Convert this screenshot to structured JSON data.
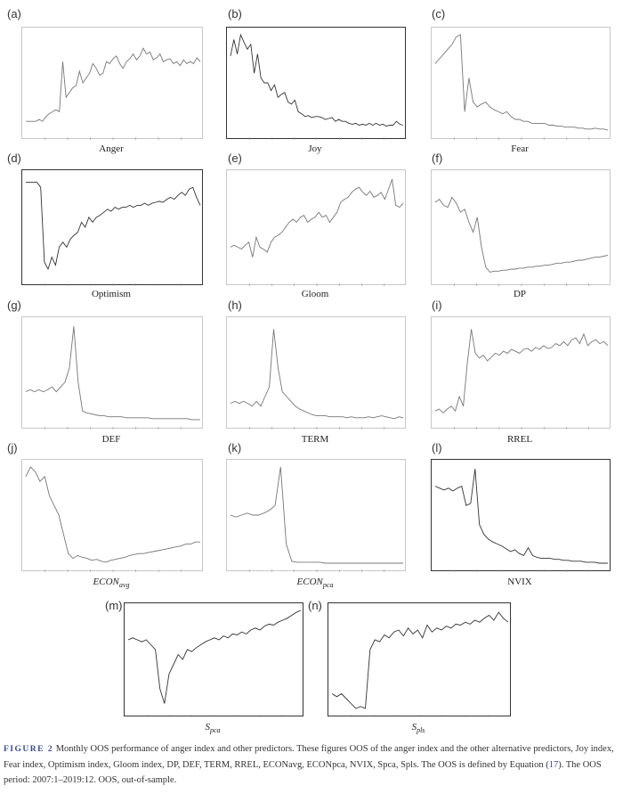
{
  "panels": [
    {
      "id": "a",
      "letter": "(a)",
      "label": "Anger",
      "label_italic": false,
      "label_sub": "",
      "frame": "light",
      "series": [
        0.1,
        0.1,
        0.1,
        0.1,
        0.12,
        0.1,
        0.15,
        0.18,
        0.2,
        0.22,
        0.2,
        0.72,
        0.35,
        0.4,
        0.45,
        0.47,
        0.62,
        0.5,
        0.55,
        0.6,
        0.7,
        0.65,
        0.58,
        0.6,
        0.72,
        0.7,
        0.75,
        0.78,
        0.7,
        0.65,
        0.72,
        0.75,
        0.8,
        0.74,
        0.78,
        0.86,
        0.8,
        0.82,
        0.74,
        0.76,
        0.8,
        0.72,
        0.74,
        0.75,
        0.7,
        0.72,
        0.68,
        0.74,
        0.7,
        0.72,
        0.7,
        0.76,
        0.72
      ]
    },
    {
      "id": "b",
      "letter": "(b)",
      "label": "Joy",
      "label_italic": false,
      "label_sub": "",
      "frame": "dark",
      "series": [
        0.78,
        0.95,
        0.8,
        1.0,
        0.92,
        0.85,
        0.9,
        0.6,
        0.8,
        0.55,
        0.5,
        0.5,
        0.42,
        0.48,
        0.35,
        0.38,
        0.4,
        0.3,
        0.28,
        0.32,
        0.2,
        0.18,
        0.15,
        0.16,
        0.14,
        0.15,
        0.15,
        0.14,
        0.12,
        0.13,
        0.14,
        0.1,
        0.12,
        0.1,
        0.1,
        0.08,
        0.07,
        0.08,
        0.06,
        0.07,
        0.06,
        0.08,
        0.06,
        0.08,
        0.06,
        0.07,
        0.05,
        0.06,
        0.06,
        0.1,
        0.07,
        0.06
      ]
    },
    {
      "id": "c",
      "letter": "(c)",
      "label": "Fear",
      "label_italic": false,
      "label_sub": "",
      "frame": "light",
      "series": [
        0.7,
        0.75,
        0.8,
        0.85,
        0.9,
        0.98,
        1.0,
        0.2,
        0.55,
        0.3,
        0.25,
        0.28,
        0.3,
        0.25,
        0.22,
        0.2,
        0.18,
        0.2,
        0.15,
        0.12,
        0.12,
        0.1,
        0.1,
        0.08,
        0.08,
        0.08,
        0.08,
        0.06,
        0.06,
        0.05,
        0.05,
        0.04,
        0.04,
        0.04,
        0.03,
        0.03,
        0.02,
        0.02,
        0.03,
        0.02,
        0.02,
        0.01
      ]
    },
    {
      "id": "d",
      "letter": "(d)",
      "label": "Optimism",
      "label_italic": false,
      "label_sub": "",
      "frame": "dark",
      "series": [
        0.95,
        0.95,
        0.95,
        0.95,
        0.9,
        0.15,
        0.08,
        0.2,
        0.12,
        0.3,
        0.35,
        0.3,
        0.38,
        0.42,
        0.45,
        0.55,
        0.5,
        0.6,
        0.55,
        0.6,
        0.62,
        0.65,
        0.68,
        0.66,
        0.7,
        0.68,
        0.7,
        0.7,
        0.72,
        0.7,
        0.72,
        0.72,
        0.74,
        0.72,
        0.74,
        0.75,
        0.76,
        0.75,
        0.78,
        0.8,
        0.78,
        0.82,
        0.85,
        0.82,
        0.88,
        0.9,
        0.8,
        0.72
      ]
    },
    {
      "id": "e",
      "letter": "(e)",
      "label": "Gloom",
      "label_italic": false,
      "label_sub": "",
      "frame": "light",
      "series": [
        0.3,
        0.32,
        0.3,
        0.28,
        0.32,
        0.35,
        0.2,
        0.4,
        0.3,
        0.28,
        0.25,
        0.35,
        0.4,
        0.42,
        0.45,
        0.5,
        0.55,
        0.58,
        0.55,
        0.6,
        0.62,
        0.55,
        0.58,
        0.6,
        0.65,
        0.6,
        0.62,
        0.55,
        0.6,
        0.65,
        0.75,
        0.78,
        0.8,
        0.85,
        0.88,
        0.9,
        0.85,
        0.82,
        0.86,
        0.8,
        0.82,
        0.85,
        0.78,
        0.88,
        0.98,
        0.72,
        0.7,
        0.74
      ]
    },
    {
      "id": "f",
      "letter": "(f)",
      "label": "DP",
      "label_italic": false,
      "label_sub": "",
      "frame": "light",
      "series": [
        0.75,
        0.78,
        0.72,
        0.7,
        0.8,
        0.74,
        0.65,
        0.68,
        0.55,
        0.45,
        0.6,
        0.3,
        0.1,
        0.05,
        0.06,
        0.06,
        0.07,
        0.07,
        0.08,
        0.08,
        0.09,
        0.09,
        0.1,
        0.1,
        0.11,
        0.11,
        0.12,
        0.12,
        0.13,
        0.14,
        0.14,
        0.15,
        0.15,
        0.16,
        0.17,
        0.17,
        0.18,
        0.19,
        0.2,
        0.2,
        0.21,
        0.22
      ]
    },
    {
      "id": "g",
      "letter": "(g)",
      "label": "DEF",
      "label_italic": false,
      "label_sub": "",
      "frame": "light",
      "series": [
        0.3,
        0.32,
        0.3,
        0.32,
        0.3,
        0.32,
        0.35,
        0.3,
        0.35,
        0.4,
        0.55,
        0.98,
        0.4,
        0.1,
        0.08,
        0.07,
        0.06,
        0.05,
        0.05,
        0.04,
        0.04,
        0.04,
        0.04,
        0.03,
        0.03,
        0.03,
        0.03,
        0.03,
        0.03,
        0.02,
        0.02,
        0.02,
        0.02,
        0.02,
        0.02,
        0.02,
        0.02,
        0.02,
        0.01,
        0.01,
        0.01
      ]
    },
    {
      "id": "h",
      "letter": "(h)",
      "label": "TERM",
      "label_italic": false,
      "label_sub": "",
      "frame": "light",
      "series": [
        0.18,
        0.2,
        0.18,
        0.2,
        0.18,
        0.15,
        0.2,
        0.15,
        0.25,
        0.35,
        0.95,
        0.55,
        0.3,
        0.25,
        0.2,
        0.15,
        0.12,
        0.1,
        0.08,
        0.06,
        0.05,
        0.05,
        0.05,
        0.04,
        0.04,
        0.04,
        0.04,
        0.03,
        0.04,
        0.03,
        0.03,
        0.03,
        0.04,
        0.03,
        0.04,
        0.05,
        0.04,
        0.03,
        0.02,
        0.04,
        0.03
      ]
    },
    {
      "id": "i",
      "letter": "(i)",
      "label": "RREL",
      "label_italic": false,
      "label_sub": "",
      "frame": "light",
      "series": [
        0.1,
        0.12,
        0.08,
        0.12,
        0.15,
        0.1,
        0.25,
        0.15,
        0.6,
        0.95,
        0.7,
        0.65,
        0.68,
        0.62,
        0.66,
        0.7,
        0.68,
        0.72,
        0.7,
        0.74,
        0.72,
        0.7,
        0.74,
        0.75,
        0.72,
        0.76,
        0.74,
        0.78,
        0.75,
        0.76,
        0.8,
        0.78,
        0.82,
        0.78,
        0.84,
        0.86,
        0.8,
        0.9,
        0.78,
        0.82,
        0.84,
        0.8,
        0.82,
        0.78
      ]
    },
    {
      "id": "j",
      "letter": "(j)",
      "label": "ECON",
      "label_italic": true,
      "label_sub": "avg",
      "frame": "light",
      "series": [
        0.9,
        1.0,
        0.95,
        0.85,
        0.9,
        0.7,
        0.6,
        0.5,
        0.3,
        0.1,
        0.05,
        0.08,
        0.06,
        0.05,
        0.03,
        0.04,
        0.02,
        0.01,
        0.03,
        0.04,
        0.05,
        0.06,
        0.08,
        0.09,
        0.1,
        0.1,
        0.11,
        0.12,
        0.13,
        0.14,
        0.15,
        0.16,
        0.17,
        0.18,
        0.2,
        0.2,
        0.22,
        0.22
      ]
    },
    {
      "id": "k",
      "letter": "(k)",
      "label": "ECON",
      "label_italic": true,
      "label_sub": "pca",
      "frame": "light",
      "series": [
        0.5,
        0.48,
        0.5,
        0.52,
        0.5,
        0.5,
        0.52,
        0.55,
        0.6,
        1.0,
        0.2,
        0.02,
        0.01,
        0.01,
        0.01,
        0.01,
        0.01,
        0.0,
        0.0,
        0.0,
        0.0,
        0.0,
        0.0,
        0.0,
        0.0,
        0.0,
        0.0,
        0.0,
        0.0,
        0.0,
        0.0,
        0.0
      ]
    },
    {
      "id": "l",
      "letter": "(l)",
      "label": "NVIX",
      "label_italic": false,
      "label_sub": "",
      "frame": "dark",
      "series": [
        0.8,
        0.78,
        0.76,
        0.78,
        0.75,
        0.78,
        0.8,
        0.6,
        0.62,
        0.98,
        0.4,
        0.3,
        0.25,
        0.22,
        0.2,
        0.18,
        0.15,
        0.12,
        0.14,
        0.1,
        0.08,
        0.16,
        0.08,
        0.06,
        0.05,
        0.05,
        0.05,
        0.04,
        0.04,
        0.03,
        0.03,
        0.02,
        0.02,
        0.02,
        0.01,
        0.01,
        0.01,
        0.0,
        0.0,
        0.0
      ]
    },
    {
      "id": "m",
      "letter": "(m)",
      "label": "S",
      "label_italic": true,
      "label_sub": "pca",
      "frame": "dark",
      "series": [
        0.7,
        0.72,
        0.7,
        0.68,
        0.7,
        0.65,
        0.6,
        0.2,
        0.05,
        0.35,
        0.45,
        0.55,
        0.5,
        0.6,
        0.58,
        0.62,
        0.65,
        0.68,
        0.7,
        0.72,
        0.7,
        0.74,
        0.72,
        0.76,
        0.75,
        0.78,
        0.76,
        0.8,
        0.82,
        0.8,
        0.84,
        0.86,
        0.85,
        0.88,
        0.9,
        0.92,
        0.95,
        0.98,
        1.0
      ]
    },
    {
      "id": "n",
      "letter": "(n)",
      "label": "S",
      "label_italic": true,
      "label_sub": "pls",
      "frame": "dark",
      "series": [
        0.15,
        0.12,
        0.15,
        0.1,
        0.05,
        0.0,
        0.02,
        0.0,
        0.6,
        0.7,
        0.68,
        0.75,
        0.72,
        0.78,
        0.8,
        0.74,
        0.82,
        0.76,
        0.8,
        0.72,
        0.85,
        0.78,
        0.82,
        0.8,
        0.84,
        0.82,
        0.86,
        0.85,
        0.88,
        0.86,
        0.9,
        0.88,
        0.92,
        0.95,
        0.9,
        0.98,
        0.92,
        0.88
      ]
    }
  ],
  "caption": {
    "figure": "FIGURE 2",
    "text1": "   Monthly OOS performance of anger index and other predictors. These figures OOS of the anger index and the other alternative predictors, Joy index, Fear index, Optimism index, Gloom index, DP, DEF, TERM, RREL, ECON",
    "text2": "avg, ECONpca, NVIX, Spca, Spls. The OOS is defined by Equation (",
    "ref": "17",
    "text3": "). The OOS period: 2007:1–2019:12. OOS, out-of-sample."
  }
}
